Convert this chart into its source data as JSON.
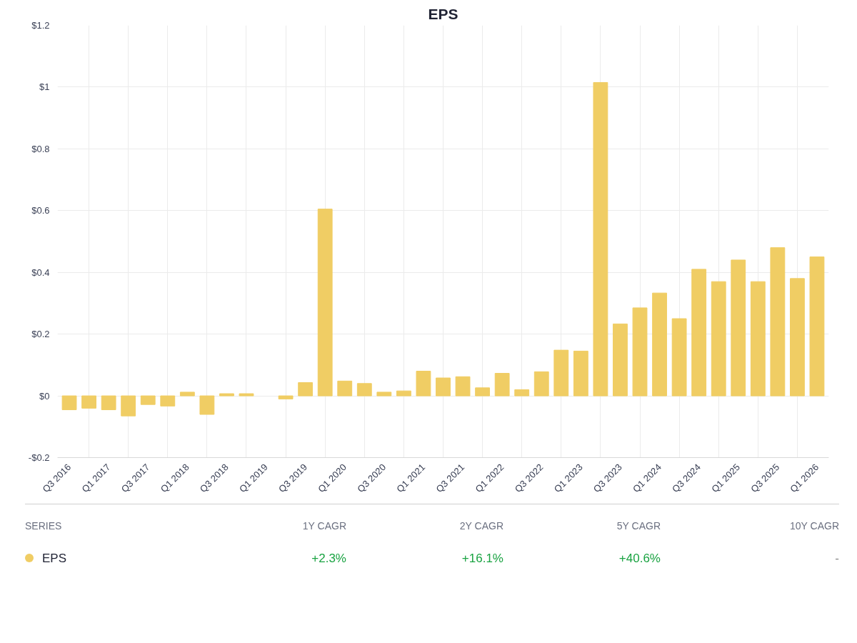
{
  "chart_data": {
    "type": "bar",
    "title": "EPS",
    "categories": [
      "Q3 2016",
      null,
      "Q1 2017",
      null,
      "Q3 2017",
      null,
      "Q1 2018",
      null,
      "Q3 2018",
      null,
      "Q1 2019",
      null,
      "Q3 2019",
      null,
      "Q1 2020",
      null,
      "Q3 2020",
      null,
      "Q1 2021",
      null,
      "Q3 2021",
      null,
      "Q1 2022",
      null,
      "Q3 2022",
      null,
      "Q1 2023",
      null,
      "Q3 2023",
      null,
      "Q1 2024",
      null,
      "Q3 2024",
      null,
      "Q1 2025",
      null,
      "Q3 2025",
      null,
      "Q1 2026"
    ],
    "series": [
      {
        "name": "EPS",
        "color": "#f0cd64",
        "values": [
          -0.045,
          -0.04,
          -0.045,
          -0.065,
          -0.028,
          -0.033,
          0.012,
          -0.06,
          0.007,
          0.007,
          null,
          -0.01,
          0.043,
          0.605,
          0.048,
          0.04,
          0.012,
          0.016,
          0.08,
          0.058,
          0.062,
          0.026,
          0.073,
          0.02,
          0.078,
          0.148,
          0.145,
          1.015,
          0.233,
          0.285,
          0.333,
          0.25,
          0.41,
          0.37,
          0.44,
          0.37,
          0.48,
          0.38,
          0.45
        ]
      }
    ],
    "ylim": [
      -0.2,
      1.2
    ],
    "yticks": [
      {
        "value": -0.2,
        "label": "-$0.2"
      },
      {
        "value": 0,
        "label": "$0"
      },
      {
        "value": 0.2,
        "label": "$0.2"
      },
      {
        "value": 0.4,
        "label": "$0.4"
      },
      {
        "value": 0.6,
        "label": "$0.6"
      },
      {
        "value": 0.8,
        "label": "$0.8"
      },
      {
        "value": 1,
        "label": "$1"
      },
      {
        "value": 1.2,
        "label": "$1.2"
      }
    ],
    "grid": true,
    "legend": "bottom",
    "annotations": [
      "SERIES",
      "1Y CAGR",
      "2Y CAGR",
      "5Y CAGR",
      "10Y CAGR",
      "+2.3%",
      "+16.1%",
      "+40.6%",
      "-"
    ]
  }
}
